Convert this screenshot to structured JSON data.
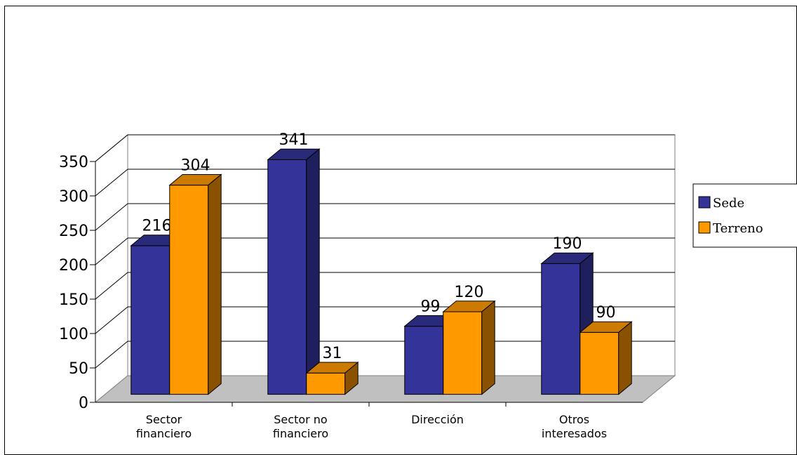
{
  "chart_data": {
    "type": "bar",
    "title": "",
    "xlabel": "",
    "ylabel": "",
    "categories": [
      [
        "Sector",
        "financiero"
      ],
      [
        "Sector no",
        "financiero"
      ],
      [
        "Dirección"
      ],
      [
        "Otros",
        "interesados"
      ]
    ],
    "series": [
      {
        "name": "Sede",
        "values": [
          216,
          341,
          99,
          190
        ],
        "color": "#333399",
        "side_color": "#1f1f5e",
        "top_color": "#2a2a7a"
      },
      {
        "name": "Terreno",
        "values": [
          304,
          31,
          120,
          90
        ],
        "color": "#ff9900",
        "side_color": "#8a5200",
        "top_color": "#cc7a00"
      }
    ],
    "ylim": [
      0,
      350
    ],
    "yticks": [
      0,
      50,
      100,
      150,
      200,
      250,
      300,
      350
    ],
    "grid": true,
    "legend_position": "right",
    "floor_color": "#c0c0c0"
  }
}
